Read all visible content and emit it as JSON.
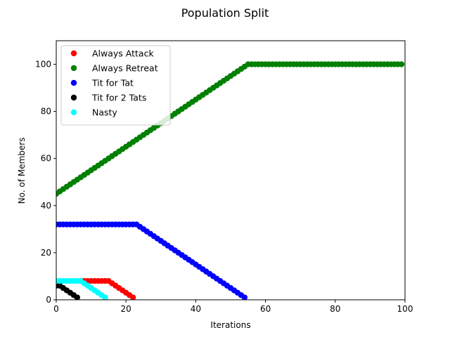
{
  "chart_data": {
    "type": "scatter",
    "title": "Population Split",
    "xlabel": "Iterations",
    "ylabel": "No. of Members",
    "xlim": [
      0,
      100
    ],
    "ylim": [
      0,
      110
    ],
    "xticks": [
      0,
      20,
      40,
      60,
      80,
      100
    ],
    "yticks": [
      0,
      20,
      40,
      60,
      80,
      100
    ],
    "grid": false,
    "legend_position": "top-left",
    "series": [
      {
        "name": "Always Attack",
        "color": "#ff0000",
        "points": [
          [
            7,
            8
          ],
          [
            8,
            8
          ],
          [
            9,
            8
          ],
          [
            10,
            8
          ],
          [
            11,
            8
          ],
          [
            12,
            8
          ],
          [
            13,
            8
          ],
          [
            14,
            8
          ],
          [
            15,
            8
          ],
          [
            16,
            7
          ],
          [
            17,
            6
          ],
          [
            18,
            5
          ],
          [
            19,
            4
          ],
          [
            20,
            3
          ],
          [
            21,
            2
          ],
          [
            22,
            1
          ]
        ]
      },
      {
        "name": "Always Retreat",
        "color": "#008000",
        "points": [
          [
            0,
            45
          ],
          [
            1,
            46
          ],
          [
            2,
            47
          ],
          [
            3,
            48
          ],
          [
            4,
            49
          ],
          [
            5,
            50
          ],
          [
            6,
            51
          ],
          [
            7,
            52
          ],
          [
            8,
            53
          ],
          [
            9,
            54
          ],
          [
            10,
            55
          ],
          [
            11,
            56
          ],
          [
            12,
            57
          ],
          [
            13,
            58
          ],
          [
            14,
            59
          ],
          [
            15,
            60
          ],
          [
            16,
            61
          ],
          [
            17,
            62
          ],
          [
            18,
            63
          ],
          [
            19,
            64
          ],
          [
            20,
            65
          ],
          [
            21,
            66
          ],
          [
            22,
            67
          ],
          [
            23,
            68
          ],
          [
            24,
            69
          ],
          [
            25,
            70
          ],
          [
            26,
            71
          ],
          [
            27,
            72
          ],
          [
            28,
            73
          ],
          [
            29,
            74
          ],
          [
            30,
            75
          ],
          [
            31,
            76
          ],
          [
            32,
            77
          ],
          [
            33,
            78
          ],
          [
            34,
            79
          ],
          [
            35,
            80
          ],
          [
            36,
            81
          ],
          [
            37,
            82
          ],
          [
            38,
            83
          ],
          [
            39,
            84
          ],
          [
            40,
            85
          ],
          [
            41,
            86
          ],
          [
            42,
            87
          ],
          [
            43,
            88
          ],
          [
            44,
            89
          ],
          [
            45,
            90
          ],
          [
            46,
            91
          ],
          [
            47,
            92
          ],
          [
            48,
            93
          ],
          [
            49,
            94
          ],
          [
            50,
            95
          ],
          [
            51,
            96
          ],
          [
            52,
            97
          ],
          [
            53,
            98
          ],
          [
            54,
            99
          ],
          [
            55,
            100
          ],
          [
            56,
            100
          ],
          [
            57,
            100
          ],
          [
            58,
            100
          ],
          [
            59,
            100
          ],
          [
            60,
            100
          ],
          [
            61,
            100
          ],
          [
            62,
            100
          ],
          [
            63,
            100
          ],
          [
            64,
            100
          ],
          [
            65,
            100
          ],
          [
            66,
            100
          ],
          [
            67,
            100
          ],
          [
            68,
            100
          ],
          [
            69,
            100
          ],
          [
            70,
            100
          ],
          [
            71,
            100
          ],
          [
            72,
            100
          ],
          [
            73,
            100
          ],
          [
            74,
            100
          ],
          [
            75,
            100
          ],
          [
            76,
            100
          ],
          [
            77,
            100
          ],
          [
            78,
            100
          ],
          [
            79,
            100
          ],
          [
            80,
            100
          ],
          [
            81,
            100
          ],
          [
            82,
            100
          ],
          [
            83,
            100
          ],
          [
            84,
            100
          ],
          [
            85,
            100
          ],
          [
            86,
            100
          ],
          [
            87,
            100
          ],
          [
            88,
            100
          ],
          [
            89,
            100
          ],
          [
            90,
            100
          ],
          [
            91,
            100
          ],
          [
            92,
            100
          ],
          [
            93,
            100
          ],
          [
            94,
            100
          ],
          [
            95,
            100
          ],
          [
            96,
            100
          ],
          [
            97,
            100
          ],
          [
            98,
            100
          ],
          [
            99,
            100
          ]
        ]
      },
      {
        "name": "Tit for Tat",
        "color": "#0000ff",
        "points": [
          [
            0,
            32
          ],
          [
            1,
            32
          ],
          [
            2,
            32
          ],
          [
            3,
            32
          ],
          [
            4,
            32
          ],
          [
            5,
            32
          ],
          [
            6,
            32
          ],
          [
            7,
            32
          ],
          [
            8,
            32
          ],
          [
            9,
            32
          ],
          [
            10,
            32
          ],
          [
            11,
            32
          ],
          [
            12,
            32
          ],
          [
            13,
            32
          ],
          [
            14,
            32
          ],
          [
            15,
            32
          ],
          [
            16,
            32
          ],
          [
            17,
            32
          ],
          [
            18,
            32
          ],
          [
            19,
            32
          ],
          [
            20,
            32
          ],
          [
            21,
            32
          ],
          [
            22,
            32
          ],
          [
            23,
            32
          ],
          [
            24,
            31
          ],
          [
            25,
            30
          ],
          [
            26,
            29
          ],
          [
            27,
            28
          ],
          [
            28,
            27
          ],
          [
            29,
            26
          ],
          [
            30,
            25
          ],
          [
            31,
            24
          ],
          [
            32,
            23
          ],
          [
            33,
            22
          ],
          [
            34,
            21
          ],
          [
            35,
            20
          ],
          [
            36,
            19
          ],
          [
            37,
            18
          ],
          [
            38,
            17
          ],
          [
            39,
            16
          ],
          [
            40,
            15
          ],
          [
            41,
            14
          ],
          [
            42,
            13
          ],
          [
            43,
            12
          ],
          [
            44,
            11
          ],
          [
            45,
            10
          ],
          [
            46,
            9
          ],
          [
            47,
            8
          ],
          [
            48,
            7
          ],
          [
            49,
            6
          ],
          [
            50,
            5
          ],
          [
            51,
            4
          ],
          [
            52,
            3
          ],
          [
            53,
            2
          ],
          [
            54,
            1
          ]
        ]
      },
      {
        "name": "Tit for 2 Tats",
        "color": "#000000",
        "points": [
          [
            0,
            6
          ],
          [
            1,
            6
          ],
          [
            2,
            5
          ],
          [
            3,
            4
          ],
          [
            4,
            3
          ],
          [
            5,
            2
          ],
          [
            6,
            1
          ]
        ]
      },
      {
        "name": "Nasty",
        "color": "#00ffff",
        "points": [
          [
            0,
            8
          ],
          [
            1,
            8
          ],
          [
            2,
            8
          ],
          [
            3,
            8
          ],
          [
            4,
            8
          ],
          [
            5,
            8
          ],
          [
            6,
            8
          ],
          [
            7,
            8
          ],
          [
            8,
            7
          ],
          [
            9,
            6
          ],
          [
            10,
            5
          ],
          [
            11,
            4
          ],
          [
            12,
            3
          ],
          [
            13,
            2
          ],
          [
            14,
            1
          ]
        ]
      }
    ]
  }
}
